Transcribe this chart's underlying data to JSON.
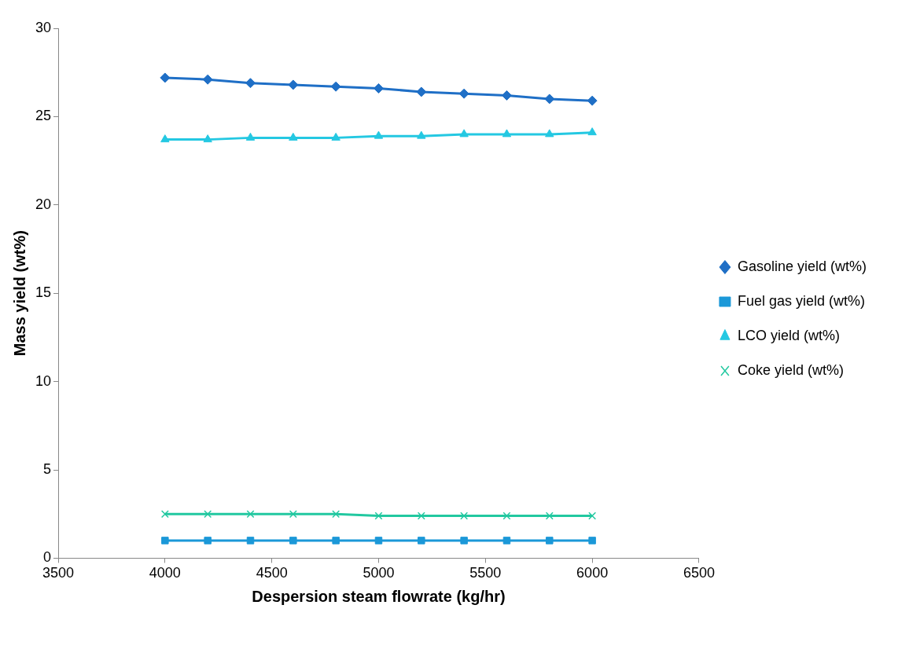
{
  "chart_data": {
    "type": "line",
    "xlabel": "Despersion steam flowrate (kg/hr)",
    "ylabel": "Mass yield (wt%)",
    "x": [
      4000,
      4200,
      4400,
      4600,
      4800,
      5000,
      5200,
      5400,
      5600,
      5800,
      6000
    ],
    "xlim": [
      3500,
      6500
    ],
    "xticks": [
      3500,
      4000,
      4500,
      5000,
      5500,
      6000,
      6500
    ],
    "ylim": [
      0,
      30
    ],
    "yticks": [
      0,
      5,
      10,
      15,
      20,
      25,
      30
    ],
    "grid": false,
    "legend": "right",
    "line_style": "solid",
    "series": [
      {
        "name": "Gasoline yield (wt%)",
        "color": "#1f6fc6",
        "marker": "diamond",
        "values": [
          27.2,
          27.1,
          26.9,
          26.8,
          26.7,
          26.6,
          26.4,
          26.3,
          26.2,
          26.0,
          25.9
        ]
      },
      {
        "name": "Fuel gas yield (wt%)",
        "color": "#1b98d8",
        "marker": "square",
        "values": [
          1.0,
          1.0,
          1.0,
          1.0,
          1.0,
          1.0,
          1.0,
          1.0,
          1.0,
          1.0,
          1.0
        ]
      },
      {
        "name": "LCO yield (wt%)",
        "color": "#24c8e2",
        "marker": "triangle",
        "values": [
          23.7,
          23.7,
          23.8,
          23.8,
          23.8,
          23.9,
          23.9,
          24.0,
          24.0,
          24.0,
          24.1
        ]
      },
      {
        "name": "Coke yield (wt%)",
        "color": "#22c8a0",
        "marker": "cross",
        "values": [
          2.5,
          2.5,
          2.5,
          2.5,
          2.5,
          2.4,
          2.4,
          2.4,
          2.4,
          2.4,
          2.4
        ]
      }
    ]
  }
}
